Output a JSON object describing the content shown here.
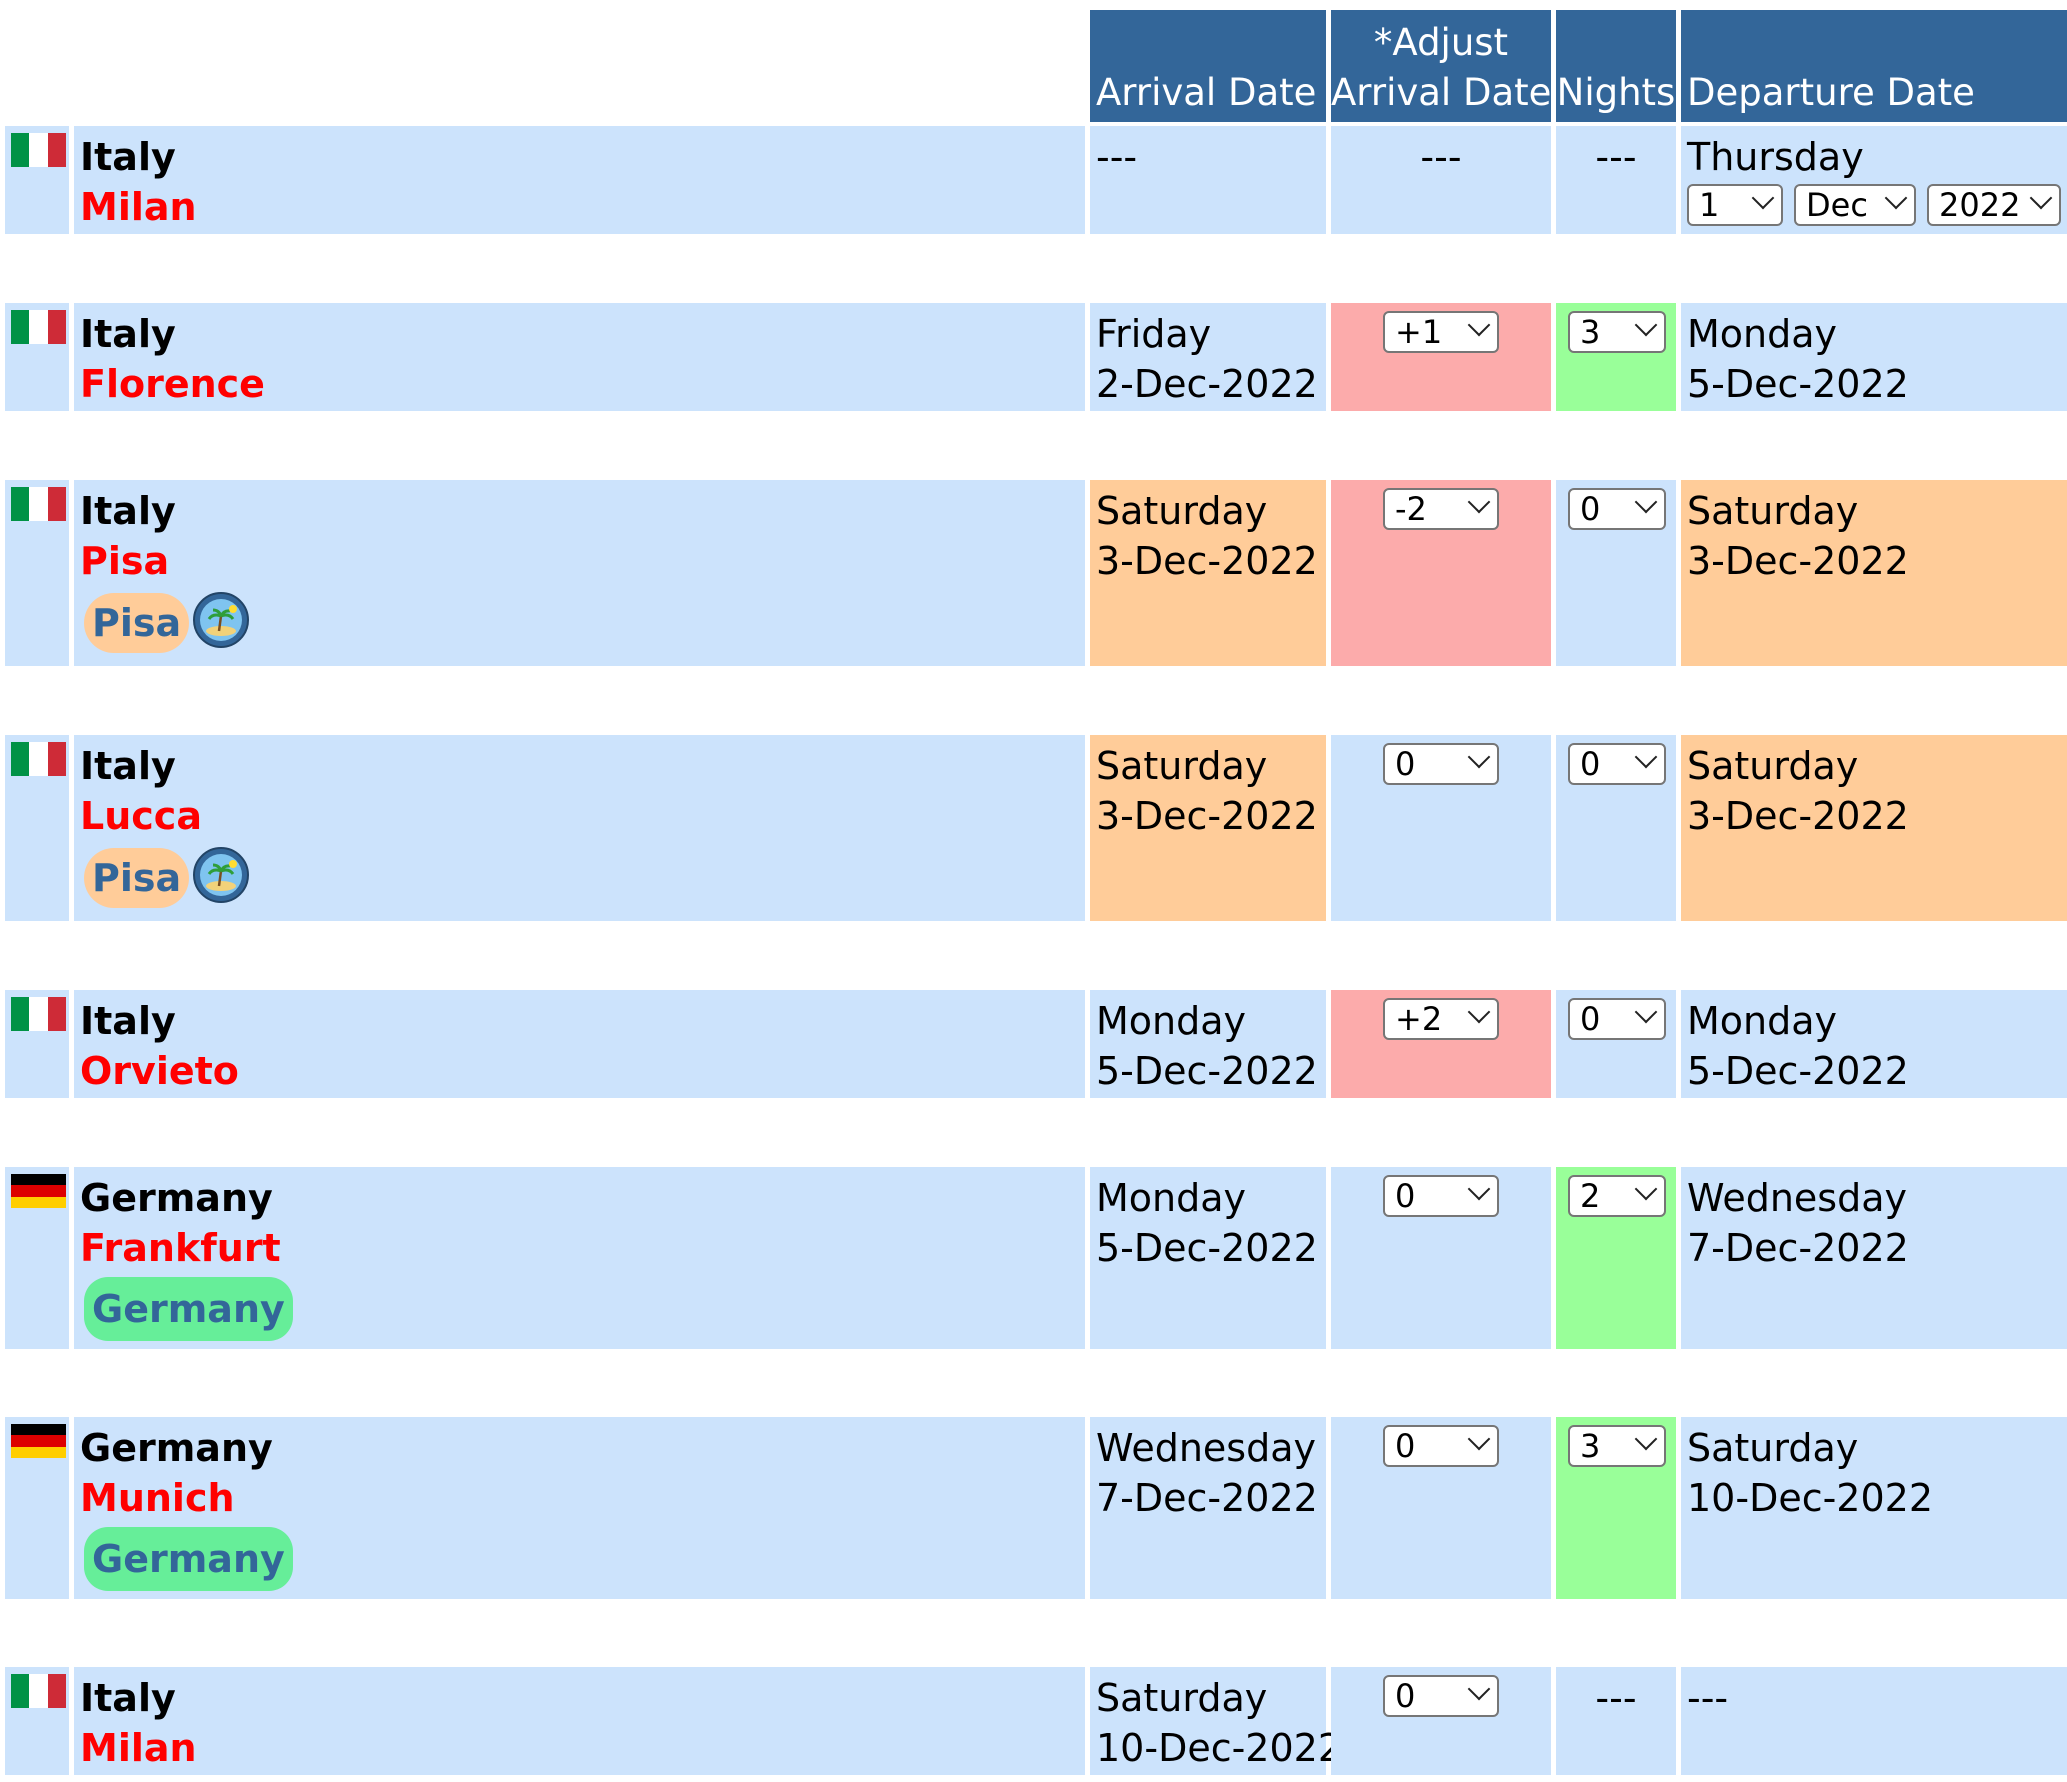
{
  "header": {
    "arrival": "Arrival Date",
    "adjust_line1": "*Adjust",
    "adjust_line2": "Arrival Date",
    "nights": "Nights",
    "departure": "Departure Date"
  },
  "colors": {
    "header": "#336699",
    "cell": "#cce3fc",
    "adjust_nonzero": "#fcabab",
    "same_day": "#ffcc99",
    "nights_nonzero": "#99ff99",
    "city": "#ff0000",
    "region_pisa": "#ffcc99",
    "region_germany": "#66ee99"
  },
  "start": {
    "country": "Italy",
    "city": "Milan",
    "arrival": "---",
    "adjust": "---",
    "nights": "---",
    "departure_weekday": "Thursday",
    "day": "1",
    "month": "Dec",
    "year": "2022"
  },
  "stops": [
    {
      "country": "Italy",
      "flag": "italy-flag-icon",
      "city": "Milan",
      "arrival_weekday": "",
      "arrival_date": "---",
      "adjust": "---",
      "nights": "---",
      "departure_weekday": "Thursday",
      "departure_date": ""
    },
    {
      "country": "Italy",
      "flag": "italy-flag-icon",
      "city": "Florence",
      "arrival_weekday": "Friday",
      "arrival_date": "2-Dec-2022",
      "adjust": "+1",
      "nights": "3",
      "departure_weekday": "Monday",
      "departure_date": "5-Dec-2022"
    },
    {
      "country": "Italy",
      "flag": "italy-flag-icon",
      "city": "Pisa",
      "region": "Pisa",
      "region_icon": "island-icon",
      "arrival_weekday": "Saturday",
      "arrival_date": "3-Dec-2022",
      "adjust": "-2",
      "nights": "0",
      "departure_weekday": "Saturday",
      "departure_date": "3-Dec-2022"
    },
    {
      "country": "Italy",
      "flag": "italy-flag-icon",
      "city": "Lucca",
      "region": "Pisa",
      "region_icon": "island-icon",
      "arrival_weekday": "Saturday",
      "arrival_date": "3-Dec-2022",
      "adjust": "0",
      "nights": "0",
      "departure_weekday": "Saturday",
      "departure_date": "3-Dec-2022"
    },
    {
      "country": "Italy",
      "flag": "italy-flag-icon",
      "city": "Orvieto",
      "arrival_weekday": "Monday",
      "arrival_date": "5-Dec-2022",
      "adjust": "+2",
      "nights": "0",
      "departure_weekday": "Monday",
      "departure_date": "5-Dec-2022"
    },
    {
      "country": "Germany",
      "flag": "germany-flag-icon",
      "city": "Frankfurt",
      "region": "Germany",
      "arrival_weekday": "Monday",
      "arrival_date": "5-Dec-2022",
      "adjust": "0",
      "nights": "2",
      "departure_weekday": "Wednesday",
      "departure_date": "7-Dec-2022"
    },
    {
      "country": "Germany",
      "flag": "germany-flag-icon",
      "city": "Munich",
      "region": "Germany",
      "arrival_weekday": "Wednesday",
      "arrival_date": "7-Dec-2022",
      "adjust": "0",
      "nights": "3",
      "departure_weekday": "Saturday",
      "departure_date": "10-Dec-2022"
    },
    {
      "country": "Italy",
      "flag": "italy-flag-icon",
      "city": "Milan",
      "arrival_weekday": "Saturday",
      "arrival_date": "10-Dec-2022",
      "adjust": "0",
      "nights": "---",
      "departure_weekday": "---",
      "departure_date": ""
    }
  ]
}
